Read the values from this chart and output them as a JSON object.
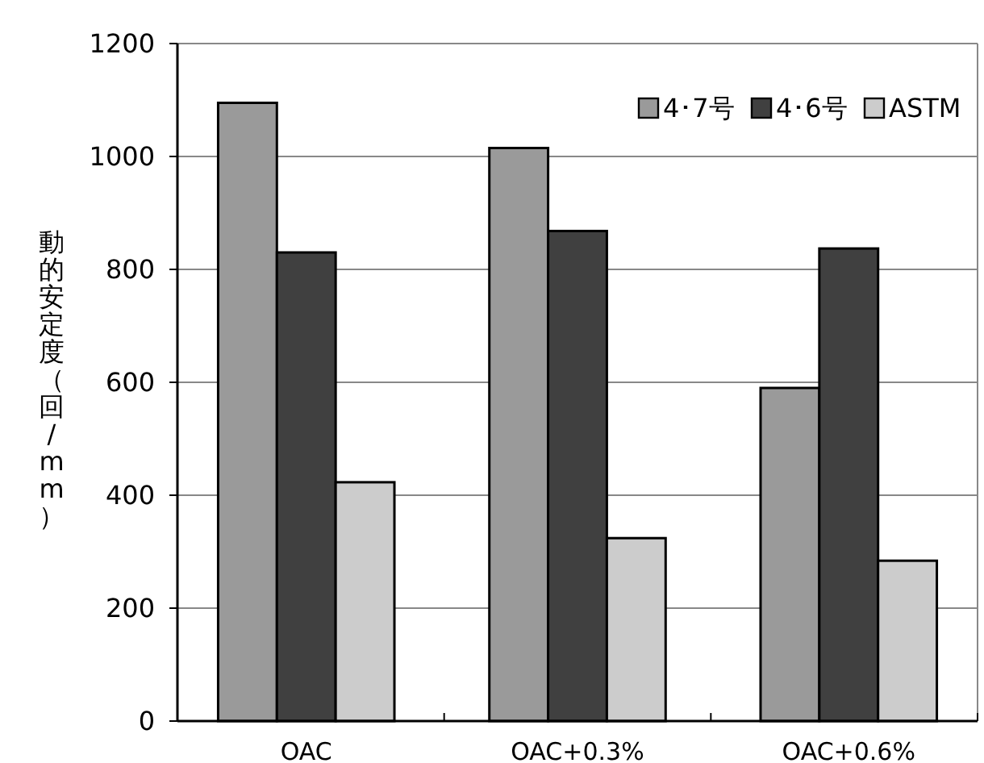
{
  "chart_data": {
    "type": "bar",
    "ylabel": "動的安定度（回/mm）",
    "categories": [
      "OAC",
      "OAC+0.3%",
      "OAC+0.6%"
    ],
    "series": [
      {
        "name": "4･7号",
        "color": "#9a9a9a",
        "values": [
          1095,
          1015,
          590
        ]
      },
      {
        "name": "4･6号",
        "color": "#404040",
        "values": [
          830,
          868,
          837
        ]
      },
      {
        "name": "ASTM",
        "color": "#cccccc",
        "values": [
          423,
          324,
          284
        ]
      }
    ],
    "ylim": [
      0,
      1200
    ],
    "yticks": [
      0,
      200,
      400,
      600,
      800,
      1000,
      1200
    ],
    "grid": "y",
    "legend": "top right"
  }
}
